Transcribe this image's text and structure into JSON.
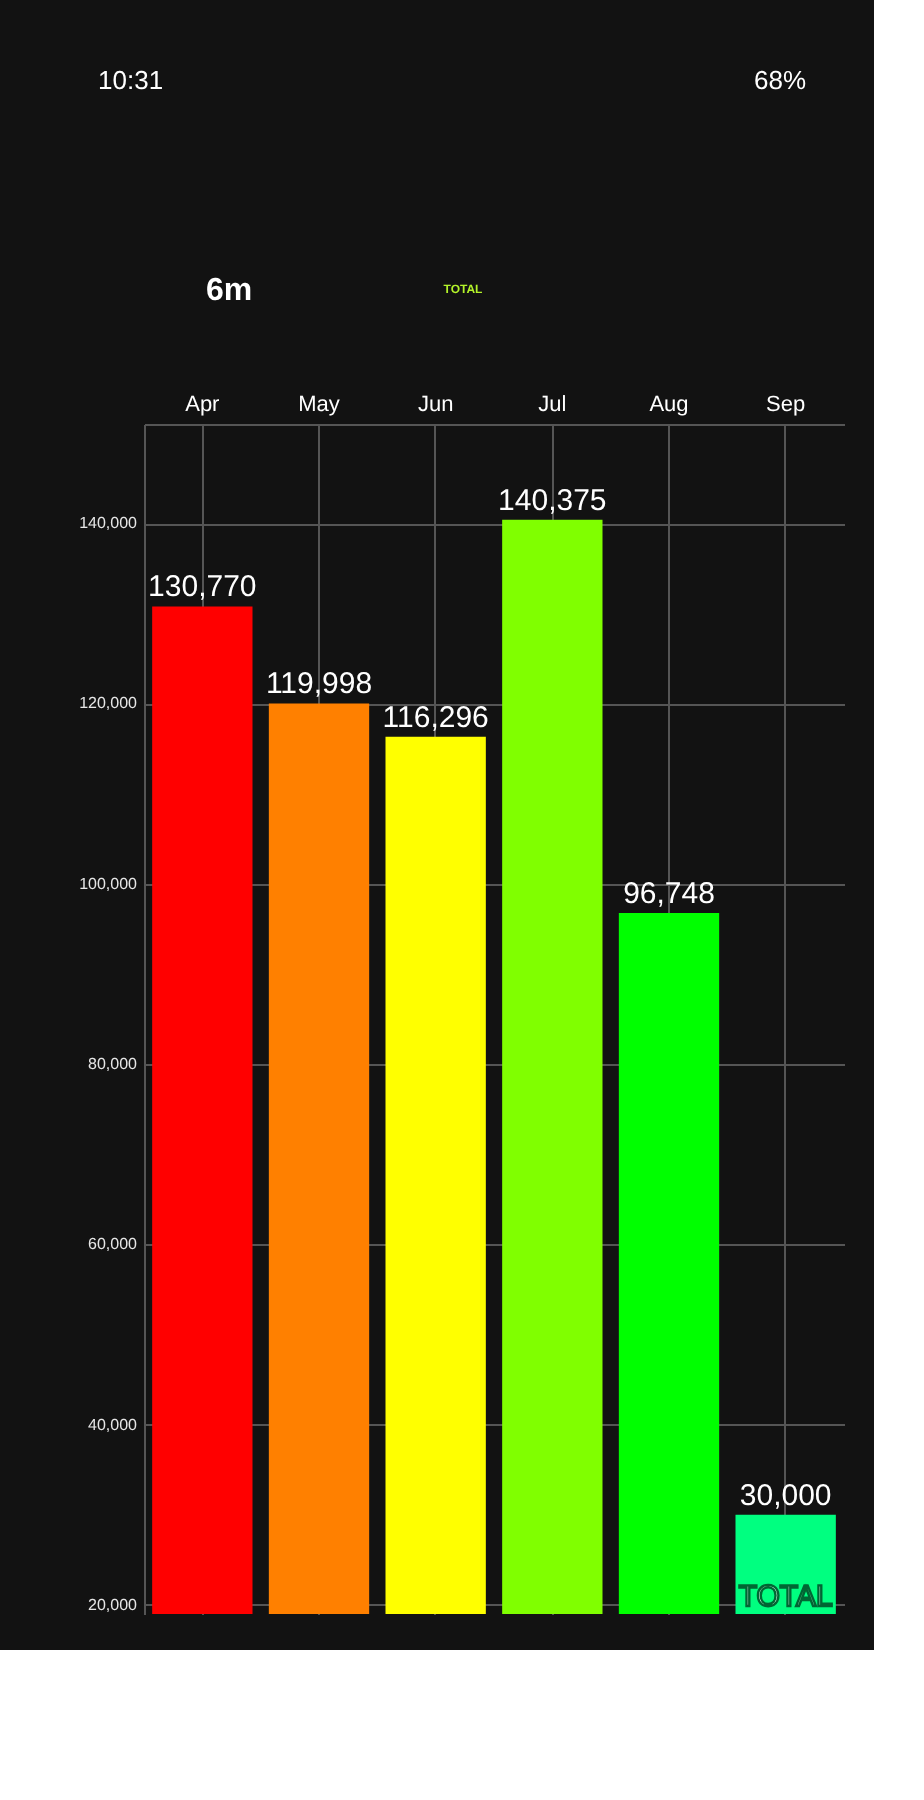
{
  "chart_data": {
    "type": "bar",
    "categories": [
      "Apr",
      "May",
      "Jun",
      "Jul",
      "Aug",
      "Sep"
    ],
    "values": [
      130770,
      119998,
      116296,
      140375,
      96748,
      30000
    ],
    "colors": [
      "#ff0000",
      "#ff8000",
      "#ffff00",
      "#80ff00",
      "#00ff00",
      "#00ff80"
    ],
    "value_labels": [
      "130,770",
      "119,998",
      "116,296",
      "140,375",
      "96,748",
      "30,000"
    ],
    "ylim": [
      19000,
      151000
    ],
    "yticks": [
      {
        "value": 20000,
        "label": "20,000"
      },
      {
        "value": 40000,
        "label": "40,000"
      },
      {
        "value": 60000,
        "label": "60,000"
      },
      {
        "value": 80000,
        "label": "80,000"
      },
      {
        "value": 100000,
        "label": "100,000"
      },
      {
        "value": 120000,
        "label": "120,000"
      },
      {
        "value": 140000,
        "label": "140,000"
      }
    ],
    "grid": true,
    "annotations": [
      "10:31",
      "68%",
      "6m",
      "TOTAL",
      "TOTAL"
    ]
  }
}
